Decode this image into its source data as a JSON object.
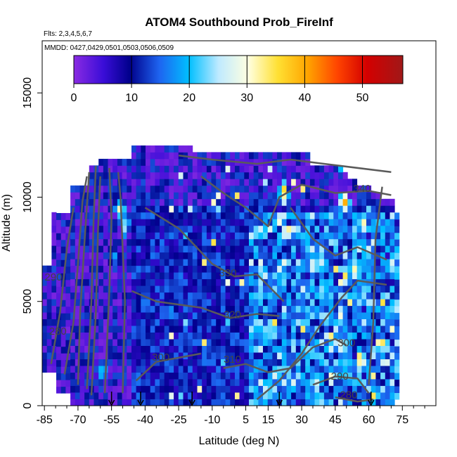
{
  "chart_data": {
    "type": "heatmap",
    "title": "ATOM4 Southbound Prob_FireInf",
    "subtitle_flights": "Flts: 2,3,4,5,6,7",
    "subtitle_dates": "MMDD: 0427,0429,0501,0503,0506,0509",
    "xlabel": "Latitude (deg N)",
    "ylabel": "Altitude (m)",
    "xlim": [
      -86,
      90
    ],
    "ylim": [
      0,
      17500
    ],
    "x_ticks": [
      -85,
      -70,
      -55,
      -40,
      -25,
      -10,
      5,
      15,
      30,
      45,
      60,
      75
    ],
    "x_tick_labels": [
      "-85",
      "-70",
      "-55",
      "-40",
      "-25",
      "-10",
      "5",
      "15",
      "30",
      "45",
      "60",
      "75"
    ],
    "y_ticks": [
      0,
      5000,
      10000,
      15000
    ],
    "y_tick_labels": [
      "0",
      "5000",
      "10000",
      "15000"
    ],
    "colorbar": {
      "min": 0,
      "max": 57,
      "ticks": [
        0,
        10,
        20,
        30,
        40,
        50
      ],
      "tick_labels": [
        "0",
        "10",
        "20",
        "30",
        "40",
        "50"
      ]
    },
    "contour_labels": [
      {
        "text": "340",
        "x": 57,
        "y": 10250
      },
      {
        "text": "330",
        "x": -3,
        "y": 6200
      },
      {
        "text": "320",
        "x": -1,
        "y": 4200
      },
      {
        "text": "310",
        "x": -1,
        "y": 2050
      },
      {
        "text": "300",
        "x": -33,
        "y": 2150
      },
      {
        "text": "300",
        "x": 50,
        "y": 2850
      },
      {
        "text": "290",
        "x": -81,
        "y": 6000
      },
      {
        "text": "290",
        "x": 47,
        "y": 1250
      },
      {
        "text": "280",
        "x": -79,
        "y": 3400
      },
      {
        "text": "280",
        "x": 51,
        "y": 350
      }
    ],
    "profile_markers_lat": [
      -55,
      -42,
      -19,
      20,
      61
    ]
  }
}
